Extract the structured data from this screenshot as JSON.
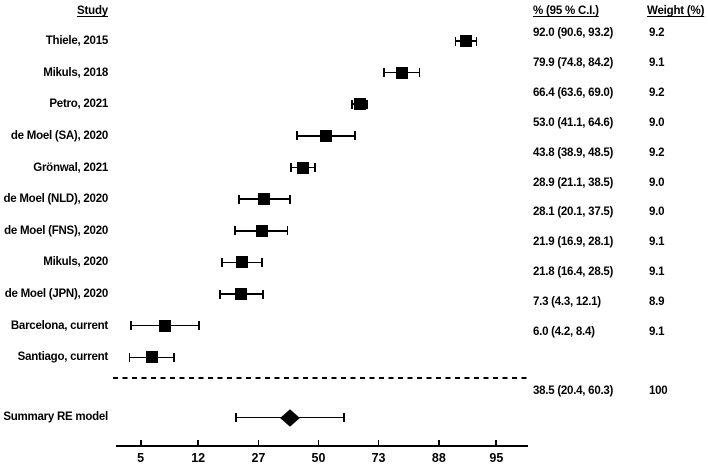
{
  "chart_data": {
    "type": "forest",
    "x_scale": "logit",
    "x_ticks": [
      5,
      12,
      27,
      50,
      73,
      88,
      95
    ],
    "grid": "off",
    "columns": {
      "study": "Study",
      "estimate": "% (95 % C.I.)",
      "weight": "Weight (%)"
    },
    "studies": [
      {
        "label": "Thiele, 2015",
        "est": 92.0,
        "lo": 90.6,
        "hi": 93.2,
        "estimate_text": "92.0 (90.6, 93.2)",
        "weight": "9.2"
      },
      {
        "label": "Mikuls, 2018",
        "est": 79.9,
        "lo": 74.8,
        "hi": 84.2,
        "estimate_text": "79.9 (74.8, 84.2)",
        "weight": "9.1"
      },
      {
        "label": "Petro, 2021",
        "est": 66.4,
        "lo": 63.6,
        "hi": 69.0,
        "estimate_text": "66.4 (63.6, 69.0)",
        "weight": "9.2"
      },
      {
        "label": "de Moel (SA), 2020",
        "est": 53.0,
        "lo": 41.1,
        "hi": 64.6,
        "estimate_text": "53.0 (41.1, 64.6)",
        "weight": "9.0"
      },
      {
        "label": "Grönwal, 2021",
        "est": 43.8,
        "lo": 38.9,
        "hi": 48.5,
        "estimate_text": "43.8 (38.9, 48.5)",
        "weight": "9.2"
      },
      {
        "label": "de Moel (NLD), 2020",
        "est": 28.9,
        "lo": 21.1,
        "hi": 38.5,
        "estimate_text": "28.9 (21.1, 38.5)",
        "weight": "9.0"
      },
      {
        "label": "de Moel (FNS), 2020",
        "est": 28.1,
        "lo": 20.1,
        "hi": 37.5,
        "estimate_text": "28.1 (20.1, 37.5)",
        "weight": "9.0"
      },
      {
        "label": "Mikuls, 2020",
        "est": 21.9,
        "lo": 16.9,
        "hi": 28.1,
        "estimate_text": "21.9 (16.9, 28.1)",
        "weight": "9.1"
      },
      {
        "label": "de Moel (JPN), 2020",
        "est": 21.8,
        "lo": 16.4,
        "hi": 28.5,
        "estimate_text": "21.8 (16.4, 28.5)",
        "weight": "9.1"
      },
      {
        "label": "Barcelona, current",
        "est": 7.3,
        "lo": 4.3,
        "hi": 12.1,
        "estimate_text": "7.3 (4.3, 12.1)",
        "weight": "8.9"
      },
      {
        "label": "Santiago, current",
        "est": 6.0,
        "lo": 4.2,
        "hi": 8.4,
        "estimate_text": "6.0 (4.2, 8.4)",
        "weight": "9.1"
      }
    ],
    "summary": {
      "label": "Summary RE model",
      "est": 38.5,
      "lo": 20.4,
      "hi": 60.3,
      "estimate_text": "38.5 (20.4, 60.3)",
      "weight": "100"
    }
  },
  "colors": {
    "ink": "#000000",
    "background": "#ffffff"
  }
}
